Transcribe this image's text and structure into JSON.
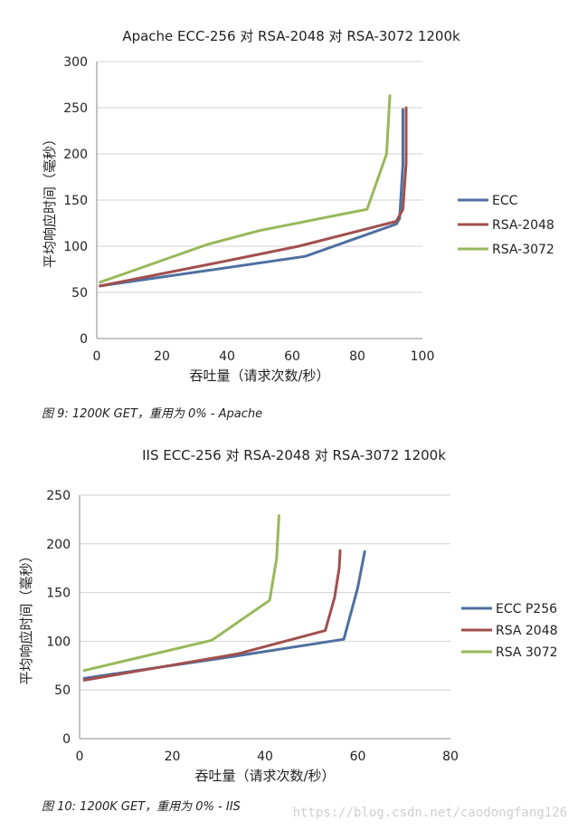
{
  "chart_data": [
    {
      "type": "line",
      "title": "Apache ECC-256 对 RSA-2048 对 RSA-3072 1200k",
      "xlabel": "吞吐量（请求次数/秒）",
      "ylabel": "平均响应时间（毫秒）",
      "xlim": [
        0,
        100
      ],
      "ylim": [
        0,
        300
      ],
      "x_ticks": [
        0,
        20,
        40,
        60,
        80,
        100
      ],
      "y_ticks": [
        0,
        50,
        100,
        150,
        200,
        250,
        300
      ],
      "grid": "horizontal",
      "legend_position": "right",
      "series": [
        {
          "name": "ECC",
          "color": "#4f6f9f",
          "points": [
            [
              1,
              57
            ],
            [
              64,
              89
            ],
            [
              92,
              124
            ],
            [
              93,
              130
            ],
            [
              94,
              188
            ],
            [
              94,
              248
            ]
          ]
        },
        {
          "name": "RSA-2048",
          "color": "#a0504e",
          "points": [
            [
              1,
              57
            ],
            [
              34,
              80
            ],
            [
              62,
              100
            ],
            [
              92,
              127
            ],
            [
              94,
              140
            ],
            [
              95,
              190
            ],
            [
              95,
              250
            ]
          ]
        },
        {
          "name": "RSA-3072",
          "color": "#98b85a",
          "points": [
            [
              1,
              61
            ],
            [
              34,
              102
            ],
            [
              50,
              117
            ],
            [
              83,
              140
            ],
            [
              89,
              200
            ],
            [
              90,
              263
            ]
          ]
        }
      ]
    },
    {
      "type": "line",
      "title": "IIS ECC-256 对 RSA-2048 对 RSA-3072 1200k",
      "xlabel": "吞吐量（请求次数/秒）",
      "ylabel": "平均响应时间（毫秒）",
      "xlim": [
        0,
        80
      ],
      "ylim": [
        0,
        250
      ],
      "x_ticks": [
        0,
        20,
        40,
        60,
        80
      ],
      "y_ticks": [
        0,
        50,
        100,
        150,
        200,
        250
      ],
      "grid": "horizontal",
      "legend_position": "right",
      "series": [
        {
          "name": "ECC P256",
          "color": "#4f6f9f",
          "points": [
            [
              1,
              62
            ],
            [
              34,
              85
            ],
            [
              57,
              102
            ],
            [
              60,
              155
            ],
            [
              61.5,
              192
            ]
          ]
        },
        {
          "name": "RSA 2048",
          "color": "#a0504e",
          "points": [
            [
              1,
              60
            ],
            [
              34,
              87
            ],
            [
              53,
              111
            ],
            [
              55,
              145
            ],
            [
              56,
              175
            ],
            [
              56.2,
              193
            ]
          ]
        },
        {
          "name": "RSA 3072",
          "color": "#98b85a",
          "points": [
            [
              1,
              70
            ],
            [
              28.5,
              101
            ],
            [
              41,
              142
            ],
            [
              42.5,
              185
            ],
            [
              43,
              229
            ]
          ]
        }
      ]
    }
  ],
  "captions": {
    "fig9": "图 9: 1200K GET，重用为 0% - Apache",
    "fig10": "图 10: 1200K GET，重用为 0% - IIS"
  },
  "watermark": "https://blog.csdn.net/caodongfang126"
}
